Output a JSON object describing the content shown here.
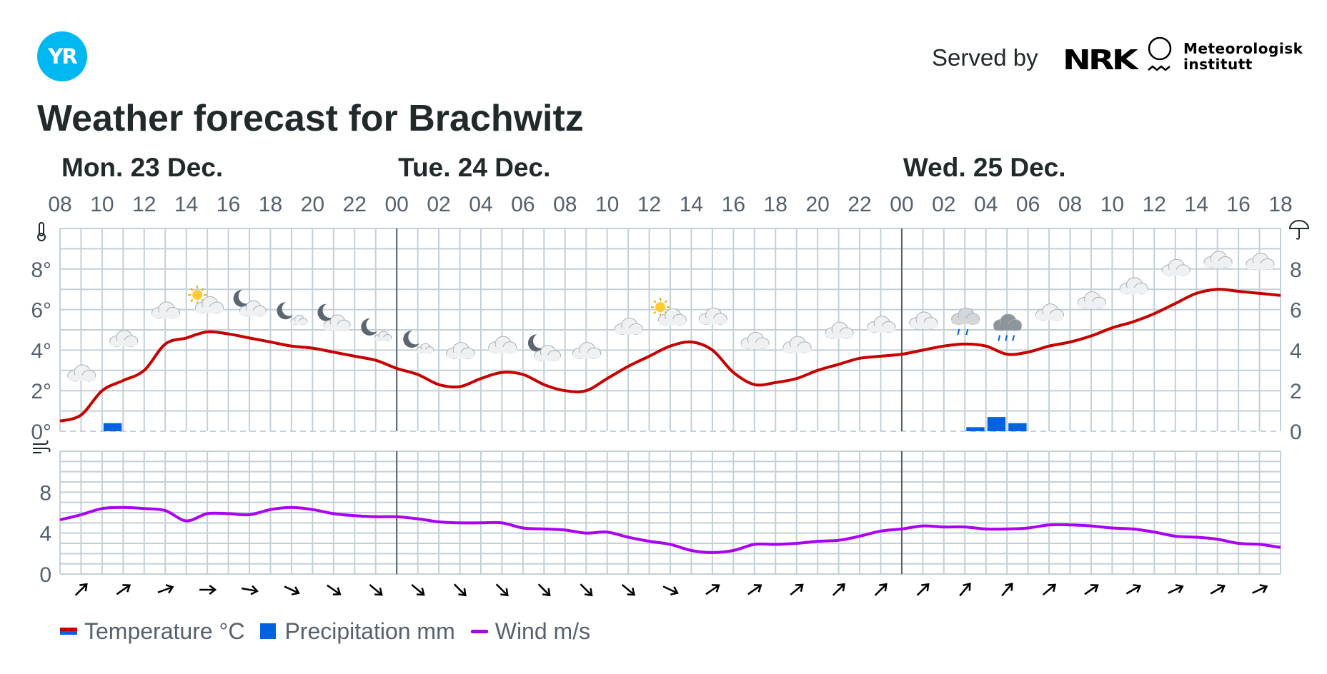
{
  "header": {
    "logo_text": "YR",
    "served_by": "Served by",
    "nrk_logo_text": "NRK",
    "met_name_line1": "Meteorologisk",
    "met_name_line2": "institutt",
    "title": "Weather forecast for Brachwitz"
  },
  "colors": {
    "temperature": "#c60000",
    "temperature_cold": "#0062e0",
    "precipitation": "#0062e0",
    "wind": "#aa00f2",
    "grid": "#c3d0d8",
    "day_divider": "#56616c",
    "yr_blue": "#00b8f1",
    "text": "#21292b",
    "axis_text": "#56616c"
  },
  "legend": {
    "temperature": "Temperature °C",
    "precipitation": "Precipitation mm",
    "wind": "Wind m/s"
  },
  "chart_data": [
    {
      "type": "line",
      "title": "Weather forecast for Brachwitz",
      "x_axis": "hour",
      "x_range_hours": [
        8,
        66
      ],
      "day_labels": [
        {
          "label": "Mon. 23 Dec.",
          "hour": 8
        },
        {
          "label": "Tue. 24 Dec.",
          "hour": 24
        },
        {
          "label": "Wed. 25 Dec.",
          "hour": 48
        }
      ],
      "tick_labels": [
        "08",
        "10",
        "12",
        "14",
        "16",
        "18",
        "20",
        "22",
        "00",
        "02",
        "04",
        "06",
        "08",
        "10",
        "12",
        "14",
        "16",
        "18",
        "20",
        "22",
        "00",
        "02",
        "04",
        "06",
        "08",
        "10",
        "12",
        "14",
        "16",
        "18"
      ],
      "y_left_ticks": [
        "0°",
        "2°",
        "4°",
        "6°",
        "8°"
      ],
      "y_right_ticks": [
        "0",
        "2",
        "4",
        "6",
        "8"
      ],
      "ylim": [
        0,
        10
      ],
      "temperature_icon": "thermometer-icon",
      "precipitation_icon": "umbrella-icon",
      "series": [
        {
          "name": "Temperature °C",
          "unit": "°C",
          "x": [
            8,
            9,
            10,
            11,
            12,
            13,
            14,
            15,
            16,
            17,
            18,
            19,
            20,
            21,
            22,
            23,
            24,
            25,
            26,
            27,
            28,
            29,
            30,
            31,
            32,
            33,
            34,
            35,
            36,
            37,
            38,
            39,
            40,
            41,
            42,
            43,
            44,
            45,
            46,
            47,
            48,
            49,
            50,
            51,
            52,
            53,
            54,
            55,
            56,
            57,
            58,
            59,
            60,
            61,
            62,
            63,
            64,
            65,
            66
          ],
          "values": [
            0.5,
            0.8,
            2.0,
            2.5,
            3.0,
            4.3,
            4.6,
            4.9,
            4.8,
            4.6,
            4.4,
            4.2,
            4.1,
            3.9,
            3.7,
            3.5,
            3.1,
            2.8,
            2.3,
            2.2,
            2.6,
            2.9,
            2.8,
            2.3,
            2.0,
            2.0,
            2.6,
            3.2,
            3.7,
            4.2,
            4.4,
            4.0,
            2.9,
            2.3,
            2.4,
            2.6,
            3.0,
            3.3,
            3.6,
            3.7,
            3.8,
            4.0,
            4.2,
            4.3,
            4.2,
            3.8,
            3.9,
            4.2,
            4.4,
            4.7,
            5.1,
            5.4,
            5.8,
            6.3,
            6.8,
            7.0,
            6.9,
            6.8,
            6.7
          ]
        },
        {
          "name": "Precipitation mm",
          "unit": "mm",
          "type": "bar",
          "bars": [
            {
              "start_hour": 10,
              "end_hour": 11,
              "value": 0.4
            },
            {
              "start_hour": 51,
              "end_hour": 52,
              "value": 0.2
            },
            {
              "start_hour": 52,
              "end_hour": 53,
              "value": 0.7
            },
            {
              "start_hour": 53,
              "end_hour": 54,
              "value": 0.4
            }
          ]
        }
      ],
      "weather_symbols": [
        {
          "hour": 9,
          "symbol": "cloudy",
          "temp": 2.8
        },
        {
          "hour": 11,
          "symbol": "cloudy",
          "temp": 4.5
        },
        {
          "hour": 13,
          "symbol": "cloudy",
          "temp": 5.9
        },
        {
          "hour": 15,
          "symbol": "partly-cloudy-day",
          "temp": 6.3
        },
        {
          "hour": 17,
          "symbol": "partly-cloudy-night",
          "temp": 6.2
        },
        {
          "hour": 19,
          "symbol": "fair-night",
          "temp": 5.8
        },
        {
          "hour": 21,
          "symbol": "partly-cloudy-night",
          "temp": 5.5
        },
        {
          "hour": 23,
          "symbol": "fair-night",
          "temp": 5.0
        },
        {
          "hour": 25,
          "symbol": "fair-night",
          "temp": 4.4
        },
        {
          "hour": 27,
          "symbol": "cloudy",
          "temp": 3.9
        },
        {
          "hour": 29,
          "symbol": "cloudy",
          "temp": 4.2
        },
        {
          "hour": 31,
          "symbol": "partly-cloudy-night",
          "temp": 4.0
        },
        {
          "hour": 33,
          "symbol": "cloudy",
          "temp": 3.9
        },
        {
          "hour": 35,
          "symbol": "cloudy",
          "temp": 5.1
        },
        {
          "hour": 37,
          "symbol": "partly-cloudy-day",
          "temp": 5.7
        },
        {
          "hour": 39,
          "symbol": "cloudy",
          "temp": 5.6
        },
        {
          "hour": 41,
          "symbol": "cloudy",
          "temp": 4.4
        },
        {
          "hour": 43,
          "symbol": "cloudy",
          "temp": 4.2
        },
        {
          "hour": 45,
          "symbol": "cloudy",
          "temp": 4.9
        },
        {
          "hour": 47,
          "symbol": "cloudy",
          "temp": 5.2
        },
        {
          "hour": 49,
          "symbol": "cloudy",
          "temp": 5.4
        },
        {
          "hour": 51,
          "symbol": "light-rain",
          "temp": 5.6
        },
        {
          "hour": 53,
          "symbol": "rain",
          "temp": 5.3
        },
        {
          "hour": 55,
          "symbol": "cloudy",
          "temp": 5.8
        },
        {
          "hour": 57,
          "symbol": "cloudy",
          "temp": 6.4
        },
        {
          "hour": 59,
          "symbol": "cloudy",
          "temp": 7.1
        },
        {
          "hour": 61,
          "symbol": "cloudy",
          "temp": 8.0
        },
        {
          "hour": 63,
          "symbol": "cloudy",
          "temp": 8.4
        },
        {
          "hour": 65,
          "symbol": "cloudy",
          "temp": 8.3
        }
      ]
    },
    {
      "type": "line",
      "wind_icon": "wind-icon",
      "y_ticks": [
        "0",
        "4",
        "8"
      ],
      "ylim": [
        0,
        12
      ],
      "series": [
        {
          "name": "Wind m/s",
          "unit": "m/s",
          "x": [
            8,
            9,
            10,
            11,
            12,
            13,
            14,
            15,
            16,
            17,
            18,
            19,
            20,
            21,
            22,
            23,
            24,
            25,
            26,
            27,
            28,
            29,
            30,
            31,
            32,
            33,
            34,
            35,
            36,
            37,
            38,
            39,
            40,
            41,
            42,
            43,
            44,
            45,
            46,
            47,
            48,
            49,
            50,
            51,
            52,
            53,
            54,
            55,
            56,
            57,
            58,
            59,
            60,
            61,
            62,
            63,
            64,
            65,
            66
          ],
          "values": [
            5.3,
            5.8,
            6.4,
            6.5,
            6.4,
            6.2,
            5.2,
            5.9,
            5.9,
            5.8,
            6.3,
            6.5,
            6.3,
            5.9,
            5.7,
            5.6,
            5.6,
            5.4,
            5.1,
            5.0,
            5.0,
            5.0,
            4.5,
            4.4,
            4.3,
            4.0,
            4.1,
            3.6,
            3.2,
            2.9,
            2.3,
            2.1,
            2.3,
            2.9,
            2.9,
            3.0,
            3.2,
            3.3,
            3.7,
            4.2,
            4.4,
            4.7,
            4.6,
            4.6,
            4.4,
            4.4,
            4.5,
            4.8,
            4.8,
            4.7,
            4.5,
            4.4,
            4.1,
            3.7,
            3.6,
            3.4,
            3.0,
            2.9,
            2.6
          ]
        }
      ],
      "wind_directions_deg": [
        {
          "hour": 9,
          "deg": 45
        },
        {
          "hour": 11,
          "deg": 55
        },
        {
          "hour": 13,
          "deg": 70
        },
        {
          "hour": 15,
          "deg": 90
        },
        {
          "hour": 17,
          "deg": 100
        },
        {
          "hour": 19,
          "deg": 115
        },
        {
          "hour": 21,
          "deg": 125
        },
        {
          "hour": 23,
          "deg": 130
        },
        {
          "hour": 25,
          "deg": 130
        },
        {
          "hour": 27,
          "deg": 135
        },
        {
          "hour": 29,
          "deg": 135
        },
        {
          "hour": 31,
          "deg": 135
        },
        {
          "hour": 33,
          "deg": 135
        },
        {
          "hour": 35,
          "deg": 130
        },
        {
          "hour": 37,
          "deg": 115
        },
        {
          "hour": 39,
          "deg": 55
        },
        {
          "hour": 41,
          "deg": 55
        },
        {
          "hour": 43,
          "deg": 50
        },
        {
          "hour": 45,
          "deg": 45
        },
        {
          "hour": 47,
          "deg": 45
        },
        {
          "hour": 49,
          "deg": 45
        },
        {
          "hour": 51,
          "deg": 40
        },
        {
          "hour": 53,
          "deg": 40
        },
        {
          "hour": 55,
          "deg": 50
        },
        {
          "hour": 57,
          "deg": 55
        },
        {
          "hour": 59,
          "deg": 60
        },
        {
          "hour": 61,
          "deg": 65
        },
        {
          "hour": 63,
          "deg": 60
        },
        {
          "hour": 65,
          "deg": 65
        }
      ]
    }
  ]
}
